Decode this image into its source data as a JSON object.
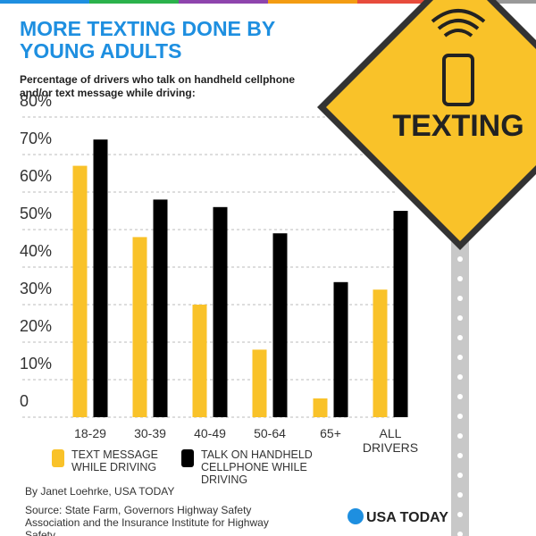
{
  "chart_data": {
    "type": "bar",
    "title": "MORE TEXTING DONE BY YOUNG ADULTS",
    "subtitle": "Percentage of drivers who talk on handheld cellphone and/or text message while driving:",
    "categories": [
      "18-29",
      "30-39",
      "40-49",
      "50-64",
      "65+",
      "ALL DRIVERS"
    ],
    "series": [
      {
        "name": "TEXT MESSAGE WHILE DRIVING",
        "color": "#f9c229",
        "values": [
          67,
          48,
          30,
          18,
          5,
          34
        ]
      },
      {
        "name": "TALK ON HANDHELD CELLPHONE WHILE DRIVING",
        "color": "#000000",
        "values": [
          74,
          58,
          56,
          49,
          36,
          55
        ]
      }
    ],
    "ylim": [
      0,
      80
    ],
    "yticks": [
      0,
      {
        "value": 10,
        "label": "10%"
      },
      {
        "value": 20,
        "label": "20%"
      },
      {
        "value": 30,
        "label": "30%"
      },
      {
        "value": 40,
        "label": "40%"
      },
      {
        "value": 50,
        "label": "50%"
      },
      {
        "value": 60,
        "label": "60%"
      },
      {
        "value": 70,
        "label": "70%"
      },
      {
        "value": 80,
        "label": "80%"
      }
    ],
    "grid": true,
    "sign_label": "TEXTING",
    "byline": "By Janet Loehrke, USA TODAY",
    "source": "Source: State Farm, Governors Highway Safety Association and the Insurance Institute for Highway Safety",
    "logo": "USA TODAY"
  }
}
